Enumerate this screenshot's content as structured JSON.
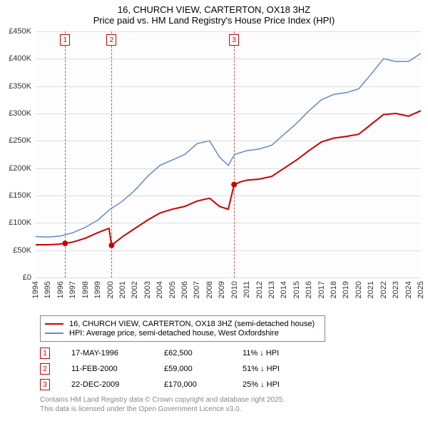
{
  "title": {
    "line1": "16, CHURCH VIEW, CARTERTON, OX18 3HZ",
    "line2": "Price paid vs. HM Land Registry's House Price Index (HPI)"
  },
  "chart": {
    "type": "line",
    "background_color": "#fdfdfd",
    "grid_color": "#dddddd",
    "ylim": [
      0,
      450000
    ],
    "ytick_step": 50000,
    "yticks": [
      "£0",
      "£50K",
      "£100K",
      "£150K",
      "£200K",
      "£250K",
      "£300K",
      "£350K",
      "£400K",
      "£450K"
    ],
    "xlim": [
      1994,
      2025
    ],
    "xticks": [
      "1994",
      "1995",
      "1996",
      "1997",
      "1998",
      "1999",
      "2000",
      "2001",
      "2002",
      "2003",
      "2004",
      "2005",
      "2006",
      "2007",
      "2008",
      "2009",
      "2010",
      "2011",
      "2012",
      "2013",
      "2014",
      "2015",
      "2016",
      "2017",
      "2018",
      "2019",
      "2020",
      "2021",
      "2022",
      "2023",
      "2024",
      "2025"
    ],
    "series": [
      {
        "name": "property",
        "label": "16, CHURCH VIEW, CARTERTON, OX18 3HZ (semi-detached house)",
        "color": "#cc0000",
        "line_width": 2,
        "points": [
          [
            1994.0,
            60000
          ],
          [
            1995.0,
            60000
          ],
          [
            1995.8,
            61000
          ],
          [
            1996.37,
            62500
          ],
          [
            1996.37,
            62500
          ],
          [
            1997.0,
            65000
          ],
          [
            1998.0,
            72000
          ],
          [
            1999.0,
            82000
          ],
          [
            1999.9,
            90000
          ],
          [
            2000.11,
            59000
          ],
          [
            2000.11,
            59000
          ],
          [
            2001.0,
            75000
          ],
          [
            2002.0,
            90000
          ],
          [
            2003.0,
            105000
          ],
          [
            2004.0,
            118000
          ],
          [
            2005.0,
            125000
          ],
          [
            2006.0,
            130000
          ],
          [
            2007.0,
            140000
          ],
          [
            2008.0,
            145000
          ],
          [
            2008.8,
            130000
          ],
          [
            2009.5,
            125000
          ],
          [
            2009.97,
            170000
          ],
          [
            2009.97,
            170000
          ],
          [
            2010.5,
            175000
          ],
          [
            2011.0,
            178000
          ],
          [
            2012.0,
            180000
          ],
          [
            2013.0,
            185000
          ],
          [
            2014.0,
            200000
          ],
          [
            2015.0,
            215000
          ],
          [
            2016.0,
            232000
          ],
          [
            2017.0,
            248000
          ],
          [
            2018.0,
            255000
          ],
          [
            2019.0,
            258000
          ],
          [
            2020.0,
            262000
          ],
          [
            2021.0,
            280000
          ],
          [
            2022.0,
            298000
          ],
          [
            2023.0,
            300000
          ],
          [
            2024.0,
            295000
          ],
          [
            2025.0,
            305000
          ]
        ],
        "markers": [
          {
            "x": 1996.37,
            "y": 62500
          },
          {
            "x": 2000.11,
            "y": 59000
          },
          {
            "x": 2009.97,
            "y": 170000
          }
        ]
      },
      {
        "name": "hpi",
        "label": "HPI: Average price, semi-detached house, West Oxfordshire",
        "color": "#6688cc",
        "line_width": 1.5,
        "points": [
          [
            1994.0,
            75000
          ],
          [
            1995.0,
            74000
          ],
          [
            1996.0,
            76000
          ],
          [
            1997.0,
            82000
          ],
          [
            1998.0,
            92000
          ],
          [
            1999.0,
            105000
          ],
          [
            2000.0,
            125000
          ],
          [
            2001.0,
            140000
          ],
          [
            2002.0,
            160000
          ],
          [
            2003.0,
            185000
          ],
          [
            2004.0,
            205000
          ],
          [
            2005.0,
            215000
          ],
          [
            2006.0,
            225000
          ],
          [
            2007.0,
            245000
          ],
          [
            2008.0,
            250000
          ],
          [
            2008.8,
            220000
          ],
          [
            2009.5,
            205000
          ],
          [
            2010.0,
            225000
          ],
          [
            2011.0,
            232000
          ],
          [
            2012.0,
            235000
          ],
          [
            2013.0,
            242000
          ],
          [
            2014.0,
            262000
          ],
          [
            2015.0,
            282000
          ],
          [
            2016.0,
            305000
          ],
          [
            2017.0,
            325000
          ],
          [
            2018.0,
            335000
          ],
          [
            2019.0,
            338000
          ],
          [
            2020.0,
            345000
          ],
          [
            2021.0,
            372000
          ],
          [
            2022.0,
            400000
          ],
          [
            2023.0,
            395000
          ],
          [
            2024.0,
            395000
          ],
          [
            2025.0,
            410000
          ]
        ]
      }
    ],
    "sale_markers": [
      {
        "num": "1",
        "x": 1996.37
      },
      {
        "num": "2",
        "x": 2000.11
      },
      {
        "num": "3",
        "x": 2009.97
      }
    ]
  },
  "legend": {
    "items": [
      {
        "color": "#cc0000",
        "label": "16, CHURCH VIEW, CARTERTON, OX18 3HZ (semi-detached house)"
      },
      {
        "color": "#6688cc",
        "label": "HPI: Average price, semi-detached house, West Oxfordshire"
      }
    ]
  },
  "sales": [
    {
      "num": "1",
      "date": "17-MAY-1996",
      "price": "£62,500",
      "delta": "11% ↓ HPI"
    },
    {
      "num": "2",
      "date": "11-FEB-2000",
      "price": "£59,000",
      "delta": "51% ↓ HPI"
    },
    {
      "num": "3",
      "date": "22-DEC-2009",
      "price": "£170,000",
      "delta": "25% ↓ HPI"
    }
  ],
  "footer": {
    "line1": "Contains HM Land Registry data © Crown copyright and database right 2025.",
    "line2": "This data is licensed under the Open Government Licence v3.0."
  }
}
